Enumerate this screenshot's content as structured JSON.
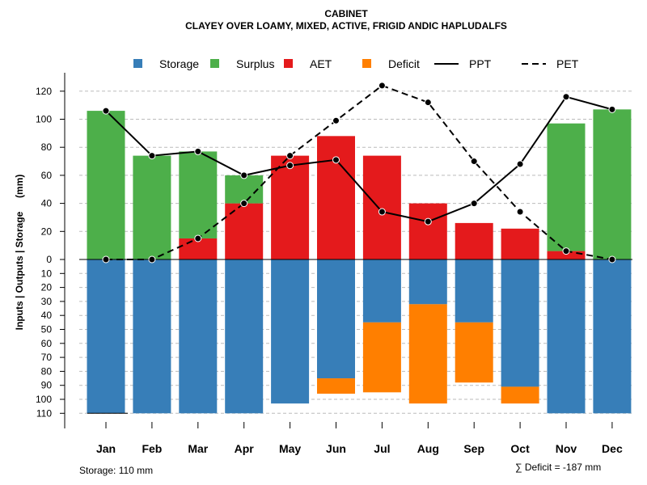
{
  "chart_data": {
    "type": "bar",
    "title": "CABINET",
    "subtitle": "CLAYEY OVER LOAMY, MIXED, ACTIVE, FRIGID ANDIC HAPLUDALFS",
    "ylabel": "Inputs | Outputs | Storage     (mm)",
    "categories": [
      "Jan",
      "Feb",
      "Mar",
      "Apr",
      "May",
      "Jun",
      "Jul",
      "Aug",
      "Sep",
      "Oct",
      "Nov",
      "Dec"
    ],
    "ylim_upper": [
      0,
      130
    ],
    "ylim_lower": [
      0,
      110
    ],
    "upper_ticks": [
      "0",
      "20",
      "40",
      "60",
      "80",
      "100",
      "120"
    ],
    "lower_ticks": [
      "10",
      "20",
      "30",
      "40",
      "50",
      "60",
      "70",
      "80",
      "90",
      "100",
      "110"
    ],
    "series": [
      {
        "name": "Storage",
        "color": "#377EB8",
        "values": [
          110,
          110,
          110,
          110,
          103,
          85,
          45,
          32,
          45,
          91,
          110,
          110
        ]
      },
      {
        "name": "Surplus",
        "color": "#4DAF4A",
        "values": [
          106,
          74,
          62,
          20,
          0,
          0,
          0,
          0,
          0,
          0,
          91,
          107
        ]
      },
      {
        "name": "AET",
        "color": "#E41A1C",
        "values": [
          0,
          0,
          15,
          40,
          74,
          88,
          74,
          40,
          26,
          22,
          6,
          0
        ]
      },
      {
        "name": "Deficit",
        "color": "#FF7F00",
        "values": [
          0,
          0,
          0,
          0,
          0,
          11,
          50,
          71,
          43,
          12,
          0,
          0
        ]
      },
      {
        "name": "PPT",
        "color": "#000000",
        "values": [
          106,
          74,
          77,
          60,
          67,
          71,
          34,
          27,
          40,
          68,
          116,
          107
        ]
      },
      {
        "name": "PET",
        "color": "#000000",
        "values": [
          0,
          0,
          15,
          40,
          74,
          99,
          124,
          112,
          70,
          34,
          6,
          0
        ]
      }
    ],
    "legend": [
      {
        "label": "Storage",
        "symbol": "square",
        "color": "#377EB8"
      },
      {
        "label": "Surplus",
        "symbol": "square",
        "color": "#4DAF4A"
      },
      {
        "label": "AET",
        "symbol": "square",
        "color": "#E41A1C"
      },
      {
        "label": "Deficit",
        "symbol": "square",
        "color": "#FF7F00"
      },
      {
        "label": "PPT",
        "symbol": "solid-line",
        "color": "#000000"
      },
      {
        "label": "PET",
        "symbol": "dashed-line",
        "color": "#000000"
      }
    ],
    "legend_position": "top",
    "grid": true
  },
  "notes": {
    "storage": "Storage: 110 mm",
    "deficit": "∑ Deficit = -187 mm"
  }
}
